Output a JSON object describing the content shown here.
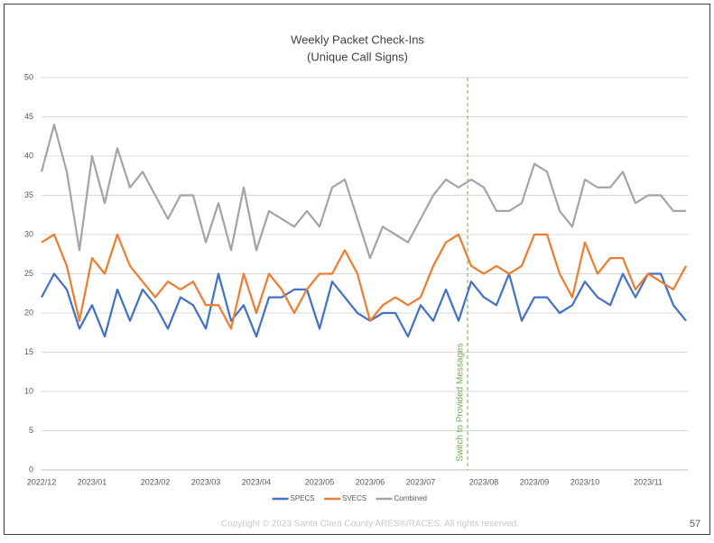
{
  "chart_data": {
    "type": "line",
    "title": "Weekly Packet Check-Ins",
    "subtitle": "(Unique Call Signs)",
    "categories": [
      "2022/12",
      null,
      null,
      null,
      "2023/01",
      null,
      null,
      null,
      null,
      "2023/02",
      null,
      null,
      null,
      "2023/03",
      null,
      null,
      null,
      "2023/04",
      null,
      null,
      null,
      null,
      "2023/05",
      null,
      null,
      null,
      "2023/06",
      null,
      null,
      null,
      "2023/07",
      null,
      null,
      null,
      null,
      "2023/08",
      null,
      null,
      null,
      "2023/09",
      null,
      null,
      null,
      "2023/10",
      null,
      null,
      null,
      null,
      "2023/11",
      null,
      null,
      null
    ],
    "series": [
      {
        "name": "SPECS",
        "color": "#4472c4",
        "values": [
          22,
          25,
          23,
          18,
          21,
          17,
          23,
          19,
          23,
          21,
          18,
          22,
          21,
          18,
          25,
          19,
          21,
          17,
          22,
          22,
          23,
          23,
          18,
          24,
          22,
          20,
          19,
          20,
          20,
          17,
          21,
          19,
          23,
          19,
          24,
          22,
          21,
          25,
          19,
          22,
          22,
          20,
          21,
          24,
          22,
          21,
          25,
          22,
          25,
          25,
          21,
          19
        ]
      },
      {
        "name": "SVECS",
        "color": "#ed7d31",
        "values": [
          29,
          30,
          26,
          19,
          27,
          25,
          30,
          26,
          24,
          22,
          24,
          23,
          24,
          21,
          21,
          18,
          25,
          20,
          25,
          23,
          20,
          23,
          25,
          25,
          28,
          25,
          19,
          21,
          22,
          21,
          22,
          26,
          29,
          30,
          26,
          25,
          26,
          25,
          26,
          30,
          30,
          25,
          22,
          29,
          25,
          27,
          27,
          23,
          25,
          24,
          23,
          26
        ]
      },
      {
        "name": "Combined",
        "color": "#a5a5a5",
        "values": [
          38,
          44,
          38,
          28,
          40,
          34,
          41,
          36,
          38,
          35,
          32,
          35,
          35,
          29,
          34,
          28,
          36,
          28,
          33,
          32,
          31,
          33,
          31,
          36,
          37,
          32,
          27,
          31,
          30,
          29,
          32,
          35,
          37,
          36,
          37,
          36,
          33,
          33,
          34,
          39,
          38,
          33,
          31,
          37,
          36,
          36,
          38,
          34,
          35,
          35,
          33,
          33
        ]
      }
    ],
    "ylim": [
      0,
      50
    ],
    "yticks": [
      0,
      5,
      10,
      15,
      20,
      25,
      30,
      35,
      40,
      45,
      50
    ],
    "grid": true,
    "legend": "bottom",
    "annotation": {
      "text": "Switch to Provided Messages",
      "color": "#70ad47"
    }
  },
  "footer": "Copyright © 2023 Santa Clara County ARES®/RACES.  All rights reserved.",
  "page_number": 57
}
